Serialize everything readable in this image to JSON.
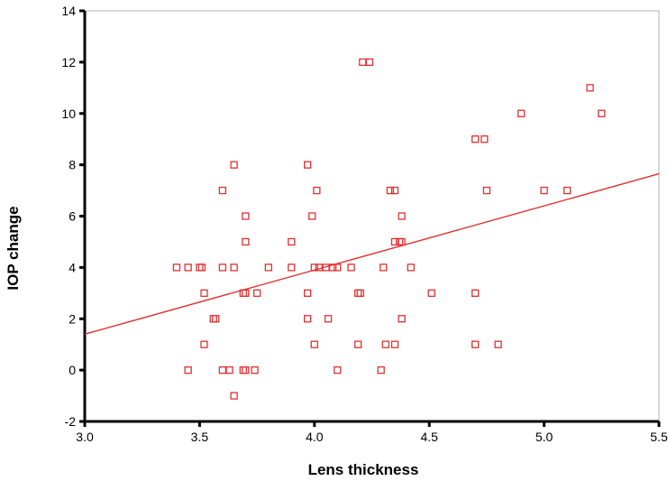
{
  "chart_data": {
    "type": "scatter",
    "title": "",
    "xlabel": "Lens thickness",
    "ylabel": "IOP change",
    "xlim": [
      3.0,
      5.5
    ],
    "ylim": [
      -2,
      14
    ],
    "x_ticks": [
      "3.0",
      "3.5",
      "4.0",
      "4.5",
      "5.0",
      "5.5"
    ],
    "y_ticks": [
      "-2",
      "0",
      "2",
      "4",
      "6",
      "8",
      "10",
      "12",
      "14"
    ],
    "grid": false,
    "legend": "none",
    "marker": "hollow-square",
    "point_color": "#e03030",
    "fit_line_color": "#e03030",
    "points": [
      {
        "x": 3.4,
        "y": 4
      },
      {
        "x": 3.45,
        "y": 4
      },
      {
        "x": 3.45,
        "y": 0
      },
      {
        "x": 3.5,
        "y": 4
      },
      {
        "x": 3.51,
        "y": 4
      },
      {
        "x": 3.52,
        "y": 3
      },
      {
        "x": 3.52,
        "y": 1
      },
      {
        "x": 3.56,
        "y": 2
      },
      {
        "x": 3.57,
        "y": 2
      },
      {
        "x": 3.6,
        "y": 7
      },
      {
        "x": 3.6,
        "y": 4
      },
      {
        "x": 3.6,
        "y": 0
      },
      {
        "x": 3.63,
        "y": 0
      },
      {
        "x": 3.65,
        "y": 8
      },
      {
        "x": 3.65,
        "y": 4
      },
      {
        "x": 3.65,
        "y": -1
      },
      {
        "x": 3.69,
        "y": 3
      },
      {
        "x": 3.7,
        "y": 6
      },
      {
        "x": 3.7,
        "y": 5
      },
      {
        "x": 3.7,
        "y": 3
      },
      {
        "x": 3.69,
        "y": 0
      },
      {
        "x": 3.7,
        "y": 0
      },
      {
        "x": 3.74,
        "y": 0
      },
      {
        "x": 3.75,
        "y": 3
      },
      {
        "x": 3.8,
        "y": 4
      },
      {
        "x": 3.9,
        "y": 5
      },
      {
        "x": 3.9,
        "y": 4
      },
      {
        "x": 3.97,
        "y": 8
      },
      {
        "x": 3.97,
        "y": 3
      },
      {
        "x": 3.97,
        "y": 2
      },
      {
        "x": 3.99,
        "y": 6
      },
      {
        "x": 4.0,
        "y": 4
      },
      {
        "x": 4.0,
        "y": 1
      },
      {
        "x": 4.01,
        "y": 7
      },
      {
        "x": 4.02,
        "y": 4
      },
      {
        "x": 4.05,
        "y": 4
      },
      {
        "x": 4.06,
        "y": 2
      },
      {
        "x": 4.08,
        "y": 4
      },
      {
        "x": 4.1,
        "y": 4
      },
      {
        "x": 4.1,
        "y": 0
      },
      {
        "x": 4.16,
        "y": 4
      },
      {
        "x": 4.19,
        "y": 3
      },
      {
        "x": 4.2,
        "y": 3
      },
      {
        "x": 4.19,
        "y": 1
      },
      {
        "x": 4.21,
        "y": 12
      },
      {
        "x": 4.24,
        "y": 12
      },
      {
        "x": 4.29,
        "y": 0
      },
      {
        "x": 4.3,
        "y": 4
      },
      {
        "x": 4.31,
        "y": 1
      },
      {
        "x": 4.33,
        "y": 7
      },
      {
        "x": 4.35,
        "y": 7
      },
      {
        "x": 4.35,
        "y": 5
      },
      {
        "x": 4.35,
        "y": 1
      },
      {
        "x": 4.37,
        "y": 5
      },
      {
        "x": 4.38,
        "y": 6
      },
      {
        "x": 4.38,
        "y": 5
      },
      {
        "x": 4.38,
        "y": 2
      },
      {
        "x": 4.42,
        "y": 4
      },
      {
        "x": 4.51,
        "y": 3
      },
      {
        "x": 4.7,
        "y": 9
      },
      {
        "x": 4.7,
        "y": 3
      },
      {
        "x": 4.7,
        "y": 1
      },
      {
        "x": 4.74,
        "y": 9
      },
      {
        "x": 4.75,
        "y": 7
      },
      {
        "x": 4.8,
        "y": 1
      },
      {
        "x": 4.9,
        "y": 10
      },
      {
        "x": 5.0,
        "y": 7
      },
      {
        "x": 5.1,
        "y": 7
      },
      {
        "x": 5.2,
        "y": 11
      },
      {
        "x": 5.25,
        "y": 10
      }
    ],
    "fit_line": {
      "x": [
        3.0,
        5.5
      ],
      "y": [
        1.4,
        7.65
      ]
    }
  }
}
